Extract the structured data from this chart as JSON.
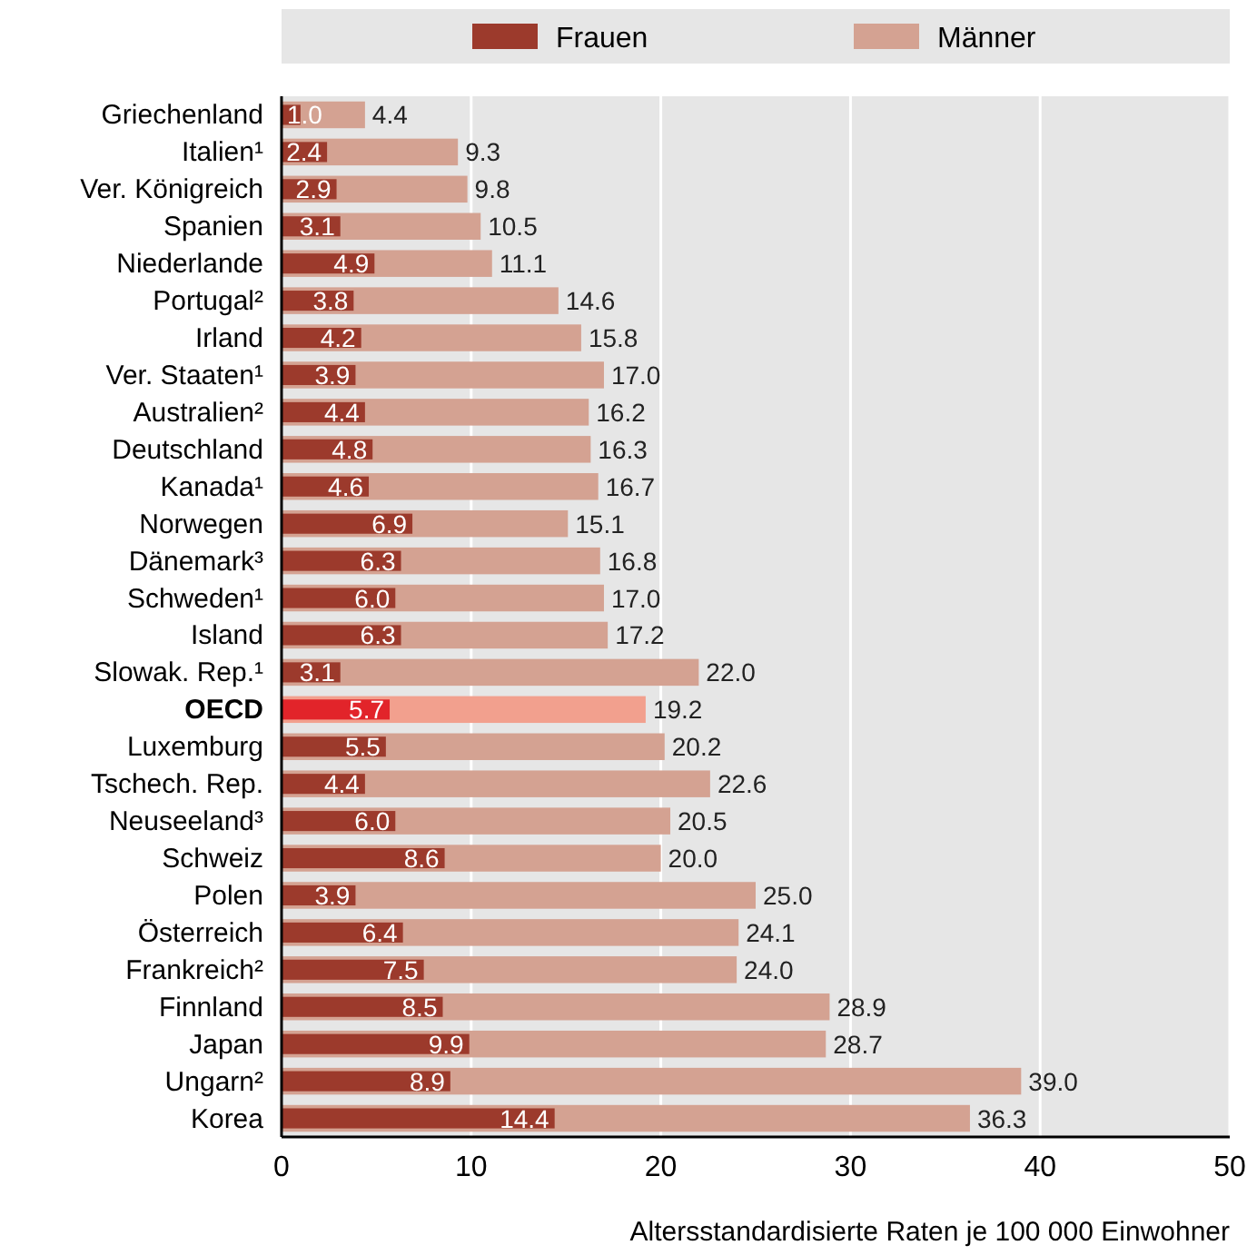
{
  "chart_data": {
    "type": "bar",
    "orientation": "horizontal",
    "xlabel": "Altersstandardisierte Raten je 100 000 Einwohner",
    "categories": [
      "Griechenland",
      "Italien¹",
      "Ver. Königreich",
      "Spanien",
      "Niederlande",
      "Portugal²",
      "Irland",
      "Ver. Staaten¹",
      "Australien²",
      "Deutschland",
      "Kanada¹",
      "Norwegen",
      "Dänemark³",
      "Schweden¹",
      "Island",
      "Slowak. Rep.¹",
      "OECD",
      "Luxemburg",
      "Tschech. Rep.",
      "Neuseeland³",
      "Schweiz",
      "Polen",
      "Österreich",
      "Frankreich²",
      "Finnland",
      "Japan",
      "Ungarn²",
      "Korea"
    ],
    "series": [
      {
        "name": "Männer",
        "color": "#d4a292",
        "colors": [
          "#d4a292",
          "#d4a292",
          "#d4a292",
          "#d4a292",
          "#d4a292",
          "#d4a292",
          "#d4a292",
          "#d4a292",
          "#d4a292",
          "#d4a292",
          "#d4a292",
          "#d4a292",
          "#d4a292",
          "#d4a292",
          "#d4a292",
          "#d4a292",
          "#f2a08e",
          "#d4a292",
          "#d4a292",
          "#d4a292",
          "#d4a292",
          "#d4a292",
          "#d4a292",
          "#d4a292",
          "#d4a292",
          "#d4a292",
          "#d4a292",
          "#d4a292"
        ],
        "values": [
          4.4,
          9.3,
          9.8,
          10.5,
          11.1,
          14.6,
          15.8,
          17.0,
          16.2,
          16.3,
          16.7,
          15.1,
          16.8,
          17.0,
          17.2,
          22.0,
          19.2,
          20.2,
          22.6,
          20.5,
          20.0,
          25.0,
          24.1,
          24.0,
          28.9,
          28.7,
          39.0,
          36.3
        ],
        "value_labels": [
          "4.4",
          "9.3",
          "9.8",
          "10.5",
          "11.1",
          "14.6",
          "15.8",
          "17.0",
          "16.2",
          "16.3",
          "16.7",
          "15.1",
          "16.8",
          "17.0",
          "17.2",
          "22.0",
          "19.2",
          "20.2",
          "22.6",
          "20.5",
          "20.0",
          "25.0",
          "24.1",
          "24.0",
          "28.9",
          "28.7",
          "39.0",
          "36.3"
        ]
      },
      {
        "name": "Frauen",
        "color": "#9c3a2c",
        "colors": [
          "#9c3a2c",
          "#9c3a2c",
          "#9c3a2c",
          "#9c3a2c",
          "#9c3a2c",
          "#9c3a2c",
          "#9c3a2c",
          "#9c3a2c",
          "#9c3a2c",
          "#9c3a2c",
          "#9c3a2c",
          "#9c3a2c",
          "#9c3a2c",
          "#9c3a2c",
          "#9c3a2c",
          "#9c3a2c",
          "#e2242a",
          "#9c3a2c",
          "#9c3a2c",
          "#9c3a2c",
          "#9c3a2c",
          "#9c3a2c",
          "#9c3a2c",
          "#9c3a2c",
          "#9c3a2c",
          "#9c3a2c",
          "#9c3a2c",
          "#9c3a2c"
        ],
        "values": [
          1.0,
          2.4,
          2.9,
          3.1,
          4.9,
          3.8,
          4.2,
          3.9,
          4.4,
          4.8,
          4.6,
          6.9,
          6.3,
          6.0,
          6.3,
          3.1,
          5.7,
          5.5,
          4.4,
          6.0,
          8.6,
          3.9,
          6.4,
          7.5,
          8.5,
          9.9,
          8.9,
          14.4
        ],
        "value_labels": [
          "1.0",
          "2.4",
          "2.9",
          "3.1",
          "4.9",
          "3.8",
          "4.2",
          "3.9",
          "4.4",
          "4.8",
          "4.6",
          "6.9",
          "6.3",
          "6.0",
          "6.3",
          "3.1",
          "5.7",
          "5.5",
          "4.4",
          "6.0",
          "8.6",
          "3.9",
          "6.4",
          "7.5",
          "8.5",
          "9.9",
          "8.9",
          "14.4"
        ]
      }
    ],
    "xlim": [
      0,
      50
    ],
    "xticks": [
      0,
      10,
      20,
      30,
      40,
      50
    ],
    "grid": "x",
    "legend": "top"
  }
}
